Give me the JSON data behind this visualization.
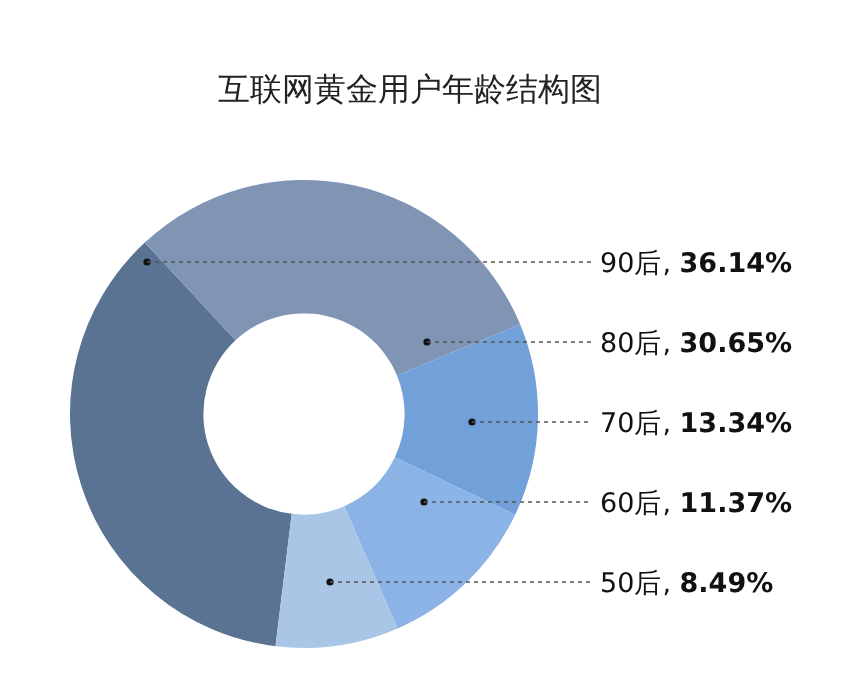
{
  "chart_data": {
    "type": "donut",
    "title": "互联网黄金用户年龄结构图",
    "categories": [
      "90后",
      "80后",
      "70后",
      "60后",
      "50后"
    ],
    "values": [
      36.14,
      30.65,
      13.34,
      11.37,
      8.49
    ],
    "colors": [
      "#5b7393",
      "#7f95b3",
      "#72a0d8",
      "#8cb3e6",
      "#a9c6e6"
    ],
    "value_labels": [
      ", **36.14%**",
      ", **30.65%**",
      ", **13.34%**",
      ", **11.37%**",
      ", **8.49%**"
    ]
  }
}
